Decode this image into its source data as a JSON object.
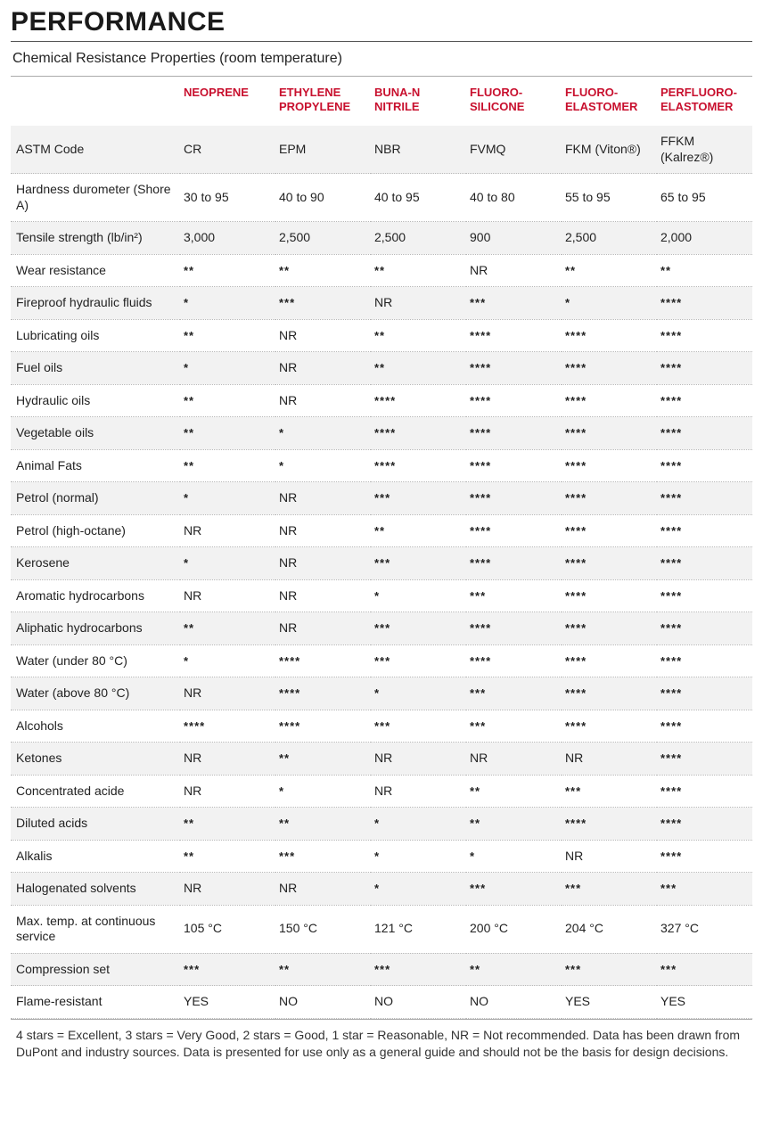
{
  "page": {
    "title": "PERFORMANCE",
    "subtitle": "Chemical Resistance Properties (room temperature)",
    "footnote": "4 stars = Excellent, 3 stars = Very Good, 2 stars = Good, 1 star = Reasonable, NR = Not recommended.\nData has been drawn from DuPont and industry sources. Data is presented for use only as a general guide and should not be the basis for design decisions."
  },
  "table": {
    "columns": [
      "NEOPRENE",
      "ETHYLENE PROPYLENE",
      "BUNA-N NITRILE",
      "FLUORO-SILICONE",
      "FLUORO-ELASTOMER",
      "PERFLUORO-ELASTOMER"
    ],
    "column_color": "#c8102e",
    "row_labels": [
      "ASTM Code",
      "Hardness durometer (Shore A)",
      "Tensile strength (lb/in²)",
      "Wear resistance",
      "Fireproof hydraulic fluids",
      "Lubricating oils",
      "Fuel oils",
      "Hydraulic oils",
      "Vegetable oils",
      "Animal Fats",
      "Petrol (normal)",
      "Petrol (high-octane)",
      "Kerosene",
      "Aromatic hydrocarbons",
      "Aliphatic hydrocarbons",
      "Water (under 80 °C)",
      "Water (above 80 °C)",
      "Alcohols",
      "Ketones",
      "Concentrated acide",
      "Diluted acids",
      "Alkalis",
      "Halogenated solvents",
      "Max. temp. at continuous service",
      "Compression set",
      "Flame-resistant"
    ],
    "rows": [
      [
        "CR",
        "EPM",
        "NBR",
        "FVMQ",
        "FKM (Viton®)",
        "FFKM (Kalrez®)"
      ],
      [
        "30 to 95",
        "40 to 90",
        "40 to 95",
        "40 to 80",
        "55 to 95",
        "65 to 95"
      ],
      [
        "3,000",
        "2,500",
        "2,500",
        "900",
        "2,500",
        "2,000"
      ],
      [
        "**",
        "**",
        "**",
        "NR",
        "**",
        "**"
      ],
      [
        "*",
        "***",
        "NR",
        "***",
        "*",
        "****"
      ],
      [
        "**",
        "NR",
        "**",
        "****",
        "****",
        "****"
      ],
      [
        "*",
        "NR",
        "**",
        "****",
        "****",
        "****"
      ],
      [
        "**",
        "NR",
        "****",
        "****",
        "****",
        "****"
      ],
      [
        "**",
        "*",
        "****",
        "****",
        "****",
        "****"
      ],
      [
        "**",
        "*",
        "****",
        "****",
        "****",
        "****"
      ],
      [
        "*",
        "NR",
        "***",
        "****",
        "****",
        "****"
      ],
      [
        "NR",
        "NR",
        "**",
        "****",
        "****",
        "****"
      ],
      [
        "*",
        "NR",
        "***",
        "****",
        "****",
        "****"
      ],
      [
        "NR",
        "NR",
        "*",
        "***",
        "****",
        "****"
      ],
      [
        "**",
        "NR",
        "***",
        "****",
        "****",
        "****"
      ],
      [
        "*",
        "****",
        "***",
        "****",
        "****",
        "****"
      ],
      [
        "NR",
        "****",
        "*",
        "***",
        "****",
        "****"
      ],
      [
        "****",
        "****",
        "***",
        "***",
        "****",
        "****"
      ],
      [
        "NR",
        "**",
        "NR",
        "NR",
        "NR",
        "****"
      ],
      [
        "NR",
        "*",
        "NR",
        "**",
        "***",
        "****"
      ],
      [
        "**",
        "**",
        "*",
        "**",
        "****",
        "****"
      ],
      [
        "**",
        "***",
        "*",
        "*",
        "NR",
        "****"
      ],
      [
        "NR",
        "NR",
        "*",
        "***",
        "***",
        "***"
      ],
      [
        "105 °C",
        "150 °C",
        "121 °C",
        "200 °C",
        "204 °C",
        "327 °C"
      ],
      [
        "***",
        "**",
        "***",
        "**",
        "***",
        "***"
      ],
      [
        "YES",
        "NO",
        "NO",
        "NO",
        "YES",
        "YES"
      ]
    ],
    "alt_row_bg": "#f2f2f2",
    "border_color_dotted": "#b8b8b8"
  }
}
